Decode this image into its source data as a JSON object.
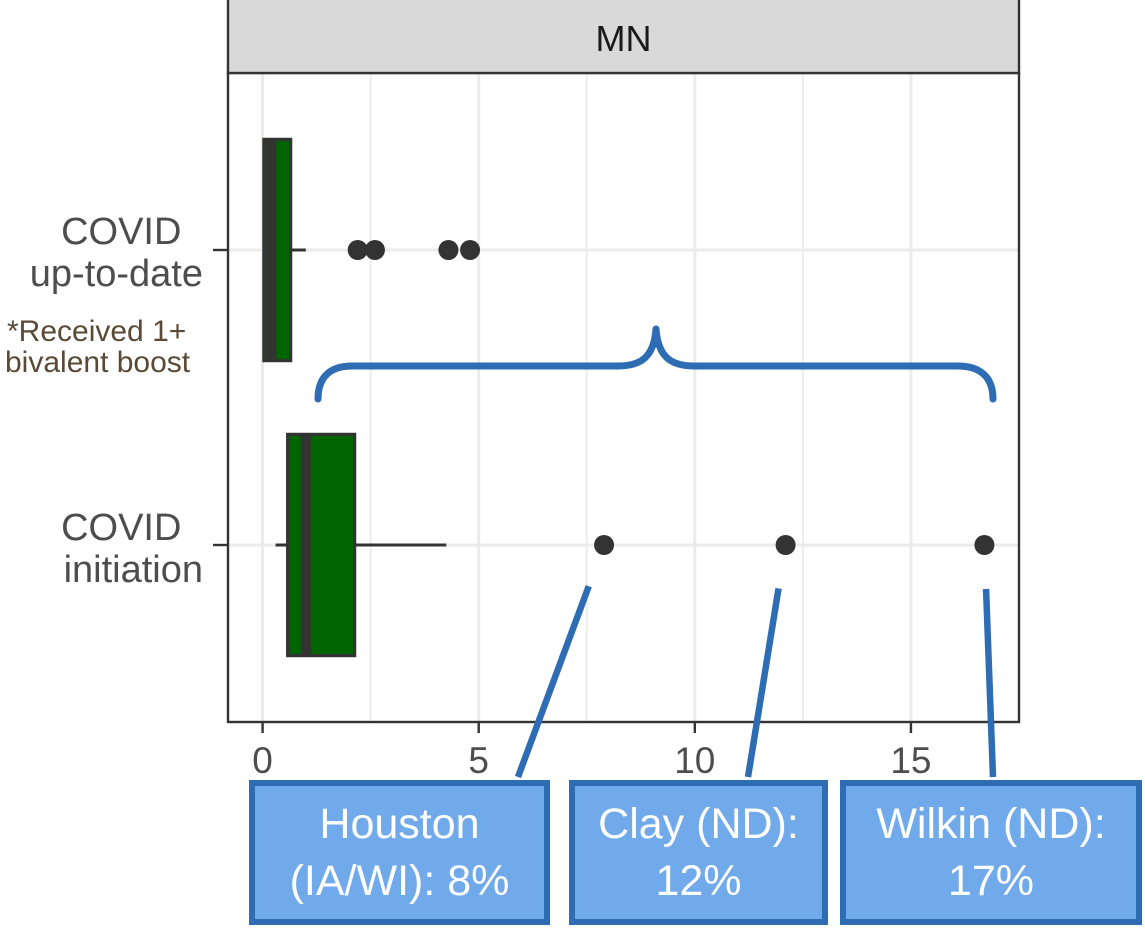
{
  "chart_data": {
    "type": "boxplot",
    "facet_label": "MN",
    "x_ticks": [
      0,
      5,
      10,
      15
    ],
    "x_tick_labels": [
      "0",
      "5",
      "10",
      "15"
    ],
    "xlim": [
      -0.8,
      17.5
    ],
    "grid": true,
    "categories": [
      {
        "label_lines": [
          "COVID",
          "up-to-date"
        ],
        "min": 0,
        "q1": 0.03,
        "median": 0.2,
        "q3": 0.65,
        "max": 1.0,
        "outliers": [
          2.2,
          2.6,
          4.3,
          4.8
        ]
      },
      {
        "label_lines": [
          "COVID",
          "initiation"
        ],
        "min": 0.3,
        "q1": 0.58,
        "median": 1.0,
        "q3": 2.13,
        "max": 4.25,
        "outliers": [
          7.9,
          12.1,
          16.7
        ]
      }
    ]
  },
  "annotations": {
    "note_lines": [
      "*Received 1+",
      "bivalent boost"
    ],
    "callouts": [
      {
        "lines": [
          "Houston",
          "(IA/WI): 8%"
        ],
        "points_to_value": 7.9
      },
      {
        "lines": [
          "Clay (ND):",
          "12%"
        ],
        "points_to_value": 12.1
      },
      {
        "lines": [
          "Wilkin (ND):",
          "17%"
        ],
        "points_to_value": 16.7
      }
    ]
  },
  "colors": {
    "box_fill": "#006400",
    "box_outline": "#333333",
    "outlier_point": "#333333",
    "axis_text": "#4d4d4d",
    "strip_fill": "#d9d9d9",
    "gridline": "#ebebeb",
    "annotation_blue": "#2e6db4",
    "callout_fill": "#70aaea",
    "callout_text": "#ffffff",
    "note_text": "#5a4a35"
  }
}
